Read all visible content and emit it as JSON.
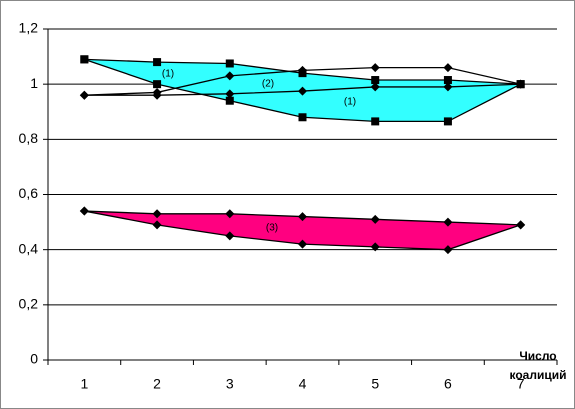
{
  "chart_data": {
    "type": "line",
    "categories": [
      "1",
      "2",
      "3",
      "4",
      "5",
      "6",
      "7"
    ],
    "xlabel": "Число коалиций",
    "ylim": [
      0,
      1.2
    ],
    "yticks": [
      0,
      {
        "value": 0.2,
        "label": "0,2"
      },
      {
        "value": 0.4,
        "label": "0,4"
      },
      {
        "value": 0.6,
        "label": "0,6"
      },
      {
        "value": 0.8,
        "label": "0,8"
      },
      1,
      {
        "value": 1.2,
        "label": "1,2"
      }
    ],
    "grid": true,
    "series": [
      {
        "color": "#000000",
        "marker": "square",
        "fill": "#33ffff",
        "values": [
          1.09,
          1.08,
          1.075,
          1.04,
          1.015,
          1.015,
          1.0
        ]
      },
      {
        "color": "#000000",
        "marker": "square",
        "values": [
          1.09,
          1.0,
          0.94,
          0.88,
          0.865,
          0.865,
          1.0
        ]
      },
      {
        "color": "#000000",
        "marker": "diamond",
        "values": [
          0.96,
          0.97,
          1.03,
          1.05,
          1.06,
          1.06,
          1.0
        ]
      },
      {
        "color": "#000000",
        "marker": "diamond",
        "values": [
          0.96,
          0.96,
          0.965,
          0.975,
          0.99,
          0.99,
          1.0
        ]
      },
      {
        "color": "#000000",
        "marker": "diamond",
        "fill": "#ff0080",
        "values": [
          0.54,
          0.53,
          0.53,
          0.52,
          0.51,
          0.5,
          0.49
        ]
      },
      {
        "color": "#000000",
        "marker": "diamond",
        "values": [
          0.54,
          0.49,
          0.45,
          0.42,
          0.41,
          0.4,
          0.49
        ]
      }
    ],
    "annotations": [
      "(1)",
      "(2)",
      "(1)",
      "(3)"
    ]
  }
}
